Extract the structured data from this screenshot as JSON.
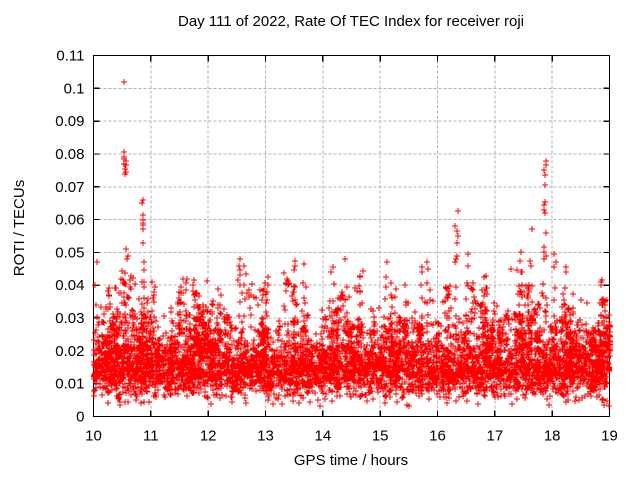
{
  "chart_data": {
    "type": "scatter",
    "title": "Day 111 of 2022, Rate Of TEC Index for receiver roji",
    "xlabel": "GPS time / hours",
    "ylabel": "ROTI / TECUs",
    "xlim": [
      10,
      19
    ],
    "ylim": [
      0,
      0.11
    ],
    "xtick_values": [
      10,
      11,
      12,
      13,
      14,
      15,
      16,
      17,
      18,
      19
    ],
    "xtick_labels": [
      "10",
      "11",
      "12",
      "13",
      "14",
      "15",
      "16",
      "17",
      "18",
      "19"
    ],
    "ytick_values": [
      0,
      0.01,
      0.02,
      0.03,
      0.04,
      0.05,
      0.06,
      0.07,
      0.08,
      0.09,
      0.1,
      0.11
    ],
    "ytick_labels": [
      "0",
      "0.01",
      "0.02",
      "0.03",
      "0.04",
      "0.05",
      "0.06",
      "0.07",
      "0.08",
      "0.09",
      "0.1",
      "0.11"
    ],
    "grid": {
      "show": true,
      "color": "#b0b0b0",
      "dash": "3,2"
    },
    "frame_color": "#000000",
    "background_color": "#ffffff",
    "legend": null,
    "marker": {
      "shape": "plus",
      "color": "#ff0000",
      "size": 7
    },
    "series": [
      {
        "name": "ROTI",
        "color": "#ff0000"
      }
    ],
    "max_point": {
      "x": 10.54,
      "y": 0.102
    },
    "dense_band": {
      "y_low": 0.005,
      "y_high": 0.023
    },
    "peak_clusters": [
      {
        "x": 10.05,
        "ys": [
          0.047,
          0.04,
          0.034
        ]
      },
      {
        "x": 10.54,
        "ys": [
          0.102
        ]
      },
      {
        "x": 10.55,
        "ys": [
          0.0805,
          0.079,
          0.0785,
          0.078,
          0.077,
          0.0765,
          0.0755,
          0.0745,
          0.074
        ]
      },
      {
        "x": 10.59,
        "ys": [
          0.051,
          0.049,
          0.048
        ]
      },
      {
        "x": 10.86,
        "ys": [
          0.066,
          0.065,
          0.0615,
          0.06,
          0.059,
          0.0585,
          0.057,
          0.053
        ]
      },
      {
        "x": 10.91,
        "ys": [
          0.047,
          0.0445
        ]
      },
      {
        "x": 11.05,
        "ys": [
          0.041,
          0.0395,
          0.038,
          0.037,
          0.036,
          0.035
        ]
      },
      {
        "x": 11.5,
        "ys": [
          0.0395,
          0.038,
          0.036,
          0.035
        ]
      },
      {
        "x": 12.2,
        "ys": [
          0.039,
          0.037,
          0.034
        ]
      },
      {
        "x": 12.55,
        "ys": [
          0.048,
          0.046,
          0.0445,
          0.043,
          0.0415,
          0.04
        ]
      },
      {
        "x": 12.63,
        "ys": [
          0.046,
          0.0435
        ]
      },
      {
        "x": 13.03,
        "ys": [
          0.0425,
          0.04,
          0.038
        ]
      },
      {
        "x": 13.5,
        "ys": [
          0.0475,
          0.046,
          0.0445
        ]
      },
      {
        "x": 13.67,
        "ys": [
          0.0465
        ]
      },
      {
        "x": 14.17,
        "ys": [
          0.0455,
          0.044
        ]
      },
      {
        "x": 14.4,
        "ys": [
          0.048
        ]
      },
      {
        "x": 15.1,
        "ys": [
          0.047,
          0.0425
        ]
      },
      {
        "x": 15.72,
        "ys": [
          0.0455,
          0.044
        ]
      },
      {
        "x": 15.84,
        "ys": [
          0.047,
          0.045
        ]
      },
      {
        "x": 16.33,
        "ys": [
          0.0625,
          0.058,
          0.0565,
          0.055,
          0.053,
          0.049,
          0.048,
          0.047
        ]
      },
      {
        "x": 16.52,
        "ys": [
          0.0495,
          0.046
        ]
      },
      {
        "x": 17.45,
        "ys": [
          0.05,
          0.0475
        ]
      },
      {
        "x": 17.63,
        "ys": [
          0.057,
          0.0475,
          0.046
        ]
      },
      {
        "x": 17.87,
        "ys": [
          0.078,
          0.0765,
          0.075,
          0.0735,
          0.0705,
          0.0655,
          0.0645,
          0.063,
          0.062,
          0.056,
          0.0515,
          0.05,
          0.049,
          0.048
        ]
      },
      {
        "x": 18.05,
        "ys": [
          0.0495,
          0.047,
          0.0455
        ]
      },
      {
        "x": 18.22,
        "ys": [
          0.0455,
          0.044
        ]
      },
      {
        "x": 18.85,
        "ys": [
          0.0415,
          0.04
        ]
      }
    ],
    "point_cloud_model": {
      "seed": 20220411,
      "base": {
        "n": 4600,
        "y0": 0.005,
        "core_spread": 0.018,
        "tail_prob": 0.22,
        "tail_mean": 0.005,
        "tail_cap": 0.046,
        "low_prob": 0.015,
        "low_min": 0.003,
        "low_range": 0.0035
      },
      "streaks": {
        "count": 90,
        "top_min": 0.027,
        "top_range": 0.019,
        "top_exp": 1.6,
        "n_min": 4,
        "n_range": 14,
        "xspread": 0.1,
        "y_base": 0.019,
        "y_exp": 0.75
      },
      "mounds": {
        "count": 26,
        "top_min": 0.03,
        "top_range": 0.014,
        "n_min": 10,
        "n_range": 22,
        "width_min": 0.12,
        "width_range": 0.25,
        "y_base": 0.018
      },
      "cluster_x_jitter": 0.05,
      "support_step": 0.0045,
      "support_cap": 0.044
    }
  }
}
